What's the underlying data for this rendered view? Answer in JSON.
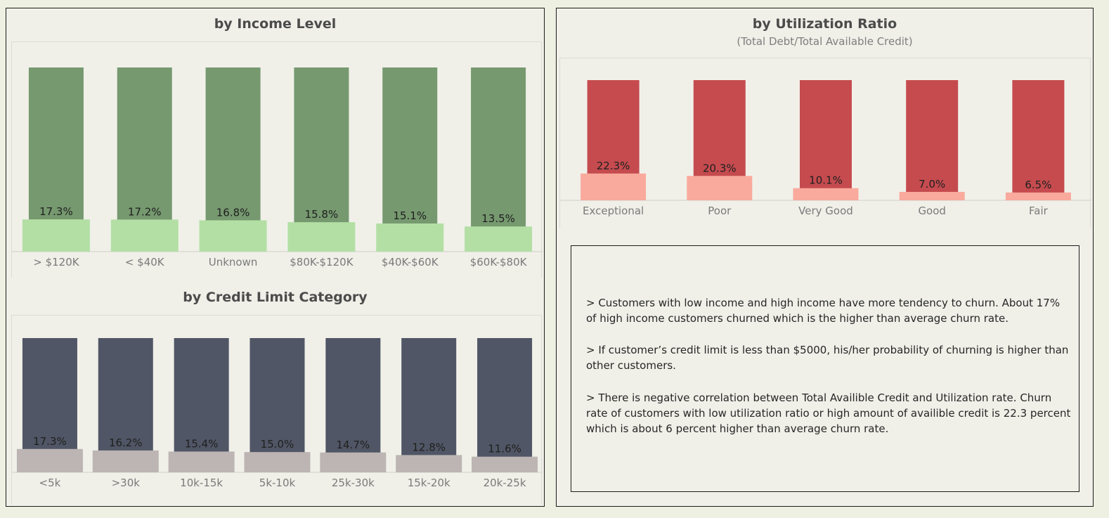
{
  "colors": {
    "income_top": "#76996f",
    "income_bottom": "#b3dfa4",
    "credit_top": "#505665",
    "credit_bottom": "#bcb5b3",
    "util_top": "#c54b4f",
    "util_bottom": "#f9aa9c"
  },
  "chart_data": [
    {
      "type": "bar",
      "title": "by Income Level",
      "categories": [
        "> $120K",
        "< $40K",
        "Unknown",
        "$80K-$120K",
        "$40K-$60K",
        "$60K-$80K"
      ],
      "values": [
        17.3,
        17.2,
        16.8,
        15.8,
        15.1,
        13.5
      ],
      "labels": [
        "17.3%",
        "17.2%",
        "16.8%",
        "15.8%",
        "15.1%",
        "13.5%"
      ],
      "ylim": [
        0,
        100
      ]
    },
    {
      "type": "bar",
      "title": "by Credit Limit Category",
      "categories": [
        "<5k",
        ">30k",
        "10k-15k",
        "5k-10k",
        "25k-30k",
        "15k-20k",
        "20k-25k"
      ],
      "values": [
        17.3,
        16.2,
        15.4,
        15.0,
        14.7,
        12.8,
        11.6
      ],
      "labels": [
        "17.3%",
        "16.2%",
        "15.4%",
        "15.0%",
        "14.7%",
        "12.8%",
        "11.6%"
      ],
      "ylim": [
        0,
        100
      ]
    },
    {
      "type": "bar",
      "title": "by Utilization Ratio",
      "subtitle": "(Total Debt/Total Available Credit)",
      "categories": [
        "Exceptional",
        "Poor",
        "Very Good",
        "Good",
        "Fair"
      ],
      "values": [
        22.3,
        20.3,
        10.1,
        7.0,
        6.5
      ],
      "labels": [
        "22.3%",
        "20.3%",
        "10.1%",
        "7.0%",
        "6.5%"
      ],
      "ylim": [
        0,
        100
      ]
    }
  ],
  "notes": [
    "> Customers with low income and high income have more tendency to churn. About 17% of high income customers churned which is the higher than average churn rate.",
    "> If customer’s credit limit is  less than $5000, his/her probability of churning is higher than other customers.",
    "> There is negative correlation  between Total Availible Credit and Utilization rate. Churn rate  of customers with low utilization ratio or high amount of availible credit  is  22.3 percent which is about 6 percent higher than average churn rate."
  ]
}
